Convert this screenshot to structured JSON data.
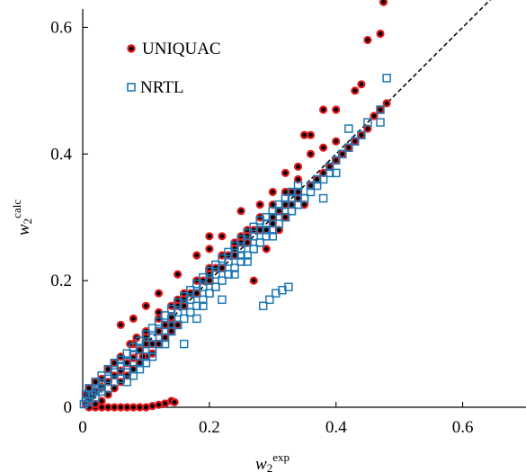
{
  "chart_data": {
    "type": "scatter",
    "title": "",
    "xlabel": "w",
    "xlabel_sub": "2",
    "xlabel_sup": "exp",
    "ylabel": "w",
    "ylabel_sub": "2",
    "ylabel_sup": "calc",
    "xlim": [
      0,
      0.7
    ],
    "ylim": [
      0,
      0.7
    ],
    "xticks": [
      0,
      0.2,
      0.4,
      0.6
    ],
    "xtick_labels": [
      "0",
      "0.2",
      "0.4",
      "0.6"
    ],
    "yticks": [
      0,
      0.2,
      0.4,
      0.6
    ],
    "ytick_labels": [
      "0",
      "0.2",
      "0.4",
      "0.6"
    ],
    "grid": false,
    "legend_position": "top-left",
    "reference_line": {
      "style": "dashed",
      "x": [
        0,
        0.7
      ],
      "y": [
        0,
        0.7
      ]
    },
    "series": [
      {
        "name": "UNIQUAC",
        "marker": "filled-circle",
        "fill_color": "#000000",
        "edge_color": "#e31a1c",
        "x": [
          0.005,
          0.01,
          0.015,
          0.02,
          0.03,
          0.04,
          0.05,
          0.06,
          0.07,
          0.08,
          0.09,
          0.1,
          0.12,
          0.14,
          0.16,
          0.18,
          0.2,
          0.22,
          0.24,
          0.26,
          0.28,
          0.3,
          0.32,
          0.34,
          0.005,
          0.01,
          0.02,
          0.03,
          0.04,
          0.05,
          0.06,
          0.08,
          0.1,
          0.12,
          0.14,
          0.16,
          0.18,
          0.2,
          0.22,
          0.24,
          0.26,
          0.28,
          0.3,
          0.32,
          0.34,
          0.02,
          0.03,
          0.04,
          0.05,
          0.06,
          0.07,
          0.08,
          0.09,
          0.1,
          0.11,
          0.12,
          0.13,
          0.14,
          0.145,
          0.01,
          0.02,
          0.03,
          0.04,
          0.05,
          0.06,
          0.07,
          0.08,
          0.09,
          0.1,
          0.11,
          0.12,
          0.13,
          0.14,
          0.15,
          0.1,
          0.11,
          0.12,
          0.13,
          0.14,
          0.15,
          0.16,
          0.17,
          0.18,
          0.19,
          0.2,
          0.21,
          0.22,
          0.23,
          0.24,
          0.25,
          0.26,
          0.27,
          0.28,
          0.29,
          0.3,
          0.31,
          0.32,
          0.33,
          0.34,
          0.35,
          0.36,
          0.37,
          0.38,
          0.39,
          0.4,
          0.41,
          0.42,
          0.43,
          0.44,
          0.45,
          0.46,
          0.47,
          0.48,
          0.075,
          0.085,
          0.095,
          0.12,
          0.15,
          0.2,
          0.25,
          0.27,
          0.29,
          0.31,
          0.33,
          0.35,
          0.36,
          0.38,
          0.4,
          0.43,
          0.44,
          0.45,
          0.47,
          0.475,
          0.48,
          0.06,
          0.08,
          0.1,
          0.12,
          0.15,
          0.18,
          0.2,
          0.22,
          0.25,
          0.28,
          0.3,
          0.32,
          0.34,
          0.36,
          0.38,
          0.4
        ],
        "y": [
          0.005,
          0.012,
          0.018,
          0.025,
          0.032,
          0.04,
          0.05,
          0.058,
          0.07,
          0.078,
          0.09,
          0.1,
          0.12,
          0.142,
          0.16,
          0.18,
          0.2,
          0.22,
          0.24,
          0.26,
          0.28,
          0.3,
          0.32,
          0.34,
          0.02,
          0.03,
          0.04,
          0.045,
          0.06,
          0.07,
          0.08,
          0.1,
          0.12,
          0.14,
          0.16,
          0.18,
          0.2,
          0.22,
          0.24,
          0.26,
          0.28,
          0.3,
          0.32,
          0.34,
          0.36,
          0.0,
          0.0,
          0.0,
          0.0,
          0.0,
          0.0,
          0.0,
          0.0,
          0.0,
          0.002,
          0.004,
          0.006,
          0.01,
          0.008,
          0.0,
          0.005,
          0.01,
          0.02,
          0.03,
          0.04,
          0.05,
          0.06,
          0.07,
          0.08,
          0.085,
          0.1,
          0.11,
          0.12,
          0.13,
          0.11,
          0.1,
          0.12,
          0.13,
          0.13,
          0.16,
          0.17,
          0.18,
          0.2,
          0.2,
          0.21,
          0.22,
          0.22,
          0.24,
          0.25,
          0.26,
          0.27,
          0.28,
          0.3,
          0.28,
          0.29,
          0.31,
          0.3,
          0.32,
          0.33,
          0.32,
          0.35,
          0.36,
          0.37,
          0.38,
          0.39,
          0.4,
          0.41,
          0.42,
          0.43,
          0.44,
          0.46,
          0.47,
          0.48,
          0.1,
          0.11,
          0.08,
          0.15,
          0.17,
          0.25,
          0.27,
          0.2,
          0.25,
          0.28,
          0.34,
          0.43,
          0.43,
          0.47,
          0.47,
          0.5,
          0.51,
          0.58,
          0.59,
          0.64,
          0.66,
          0.13,
          0.14,
          0.16,
          0.18,
          0.21,
          0.24,
          0.27,
          0.27,
          0.31,
          0.32,
          0.34,
          0.37,
          0.38,
          0.4,
          0.41,
          0.42
        ]
      },
      {
        "name": "NRTL",
        "marker": "open-square",
        "edge_color": "#1f78b4",
        "x": [
          0.002,
          0.005,
          0.01,
          0.015,
          0.02,
          0.025,
          0.03,
          0.04,
          0.05,
          0.06,
          0.07,
          0.08,
          0.09,
          0.1,
          0.11,
          0.12,
          0.13,
          0.14,
          0.15,
          0.16,
          0.17,
          0.18,
          0.19,
          0.2,
          0.21,
          0.22,
          0.23,
          0.24,
          0.25,
          0.26,
          0.27,
          0.28,
          0.29,
          0.3,
          0.31,
          0.32,
          0.33,
          0.34,
          0.005,
          0.01,
          0.02,
          0.03,
          0.04,
          0.05,
          0.06,
          0.07,
          0.08,
          0.09,
          0.1,
          0.11,
          0.12,
          0.13,
          0.14,
          0.15,
          0.16,
          0.17,
          0.18,
          0.19,
          0.2,
          0.21,
          0.22,
          0.23,
          0.24,
          0.25,
          0.26,
          0.27,
          0.28,
          0.29,
          0.3,
          0.31,
          0.32,
          0.33,
          0.34,
          0.01,
          0.02,
          0.03,
          0.04,
          0.05,
          0.06,
          0.07,
          0.08,
          0.09,
          0.1,
          0.11,
          0.12,
          0.13,
          0.14,
          0.15,
          0.16,
          0.17,
          0.18,
          0.19,
          0.2,
          0.21,
          0.22,
          0.23,
          0.24,
          0.25,
          0.26,
          0.27,
          0.28,
          0.29,
          0.3,
          0.31,
          0.32,
          0.33,
          0.34,
          0.35,
          0.36,
          0.37,
          0.38,
          0.39,
          0.4,
          0.41,
          0.42,
          0.43,
          0.44,
          0.45,
          0.47,
          0.48,
          0.285,
          0.295,
          0.305,
          0.315,
          0.325,
          0.08,
          0.1,
          0.12,
          0.14,
          0.16,
          0.18,
          0.2,
          0.22,
          0.24,
          0.26,
          0.28,
          0.3,
          0.32,
          0.34,
          0.36,
          0.38,
          0.4,
          0.42,
          0.47,
          0.07,
          0.09,
          0.11,
          0.13,
          0.15,
          0.17,
          0.19,
          0.21,
          0.23,
          0.25,
          0.27,
          0.29,
          0.31,
          0.33,
          0.35,
          0.37,
          0.39,
          0.41
        ],
        "y": [
          0.005,
          0.01,
          0.015,
          0.02,
          0.025,
          0.03,
          0.035,
          0.045,
          0.055,
          0.065,
          0.072,
          0.082,
          0.092,
          0.1,
          0.11,
          0.12,
          0.13,
          0.14,
          0.15,
          0.16,
          0.17,
          0.18,
          0.19,
          0.2,
          0.21,
          0.22,
          0.23,
          0.24,
          0.25,
          0.26,
          0.27,
          0.28,
          0.29,
          0.3,
          0.31,
          0.32,
          0.33,
          0.34,
          0.02,
          0.03,
          0.04,
          0.05,
          0.06,
          0.07,
          0.075,
          0.085,
          0.095,
          0.105,
          0.115,
          0.125,
          0.135,
          0.145,
          0.155,
          0.165,
          0.175,
          0.185,
          0.195,
          0.205,
          0.215,
          0.225,
          0.235,
          0.245,
          0.255,
          0.265,
          0.275,
          0.285,
          0.295,
          0.3,
          0.31,
          0.32,
          0.33,
          0.34,
          0.35,
          0.008,
          0.015,
          0.025,
          0.03,
          0.04,
          0.045,
          0.055,
          0.06,
          0.07,
          0.08,
          0.09,
          0.1,
          0.11,
          0.12,
          0.13,
          0.14,
          0.15,
          0.16,
          0.17,
          0.18,
          0.19,
          0.2,
          0.21,
          0.22,
          0.23,
          0.24,
          0.25,
          0.26,
          0.27,
          0.28,
          0.29,
          0.3,
          0.31,
          0.32,
          0.33,
          0.34,
          0.35,
          0.36,
          0.38,
          0.39,
          0.4,
          0.41,
          0.42,
          0.43,
          0.45,
          0.47,
          0.52,
          0.16,
          0.17,
          0.18,
          0.185,
          0.19,
          0.05,
          0.07,
          0.1,
          0.12,
          0.1,
          0.14,
          0.18,
          0.17,
          0.21,
          0.23,
          0.26,
          0.27,
          0.3,
          0.32,
          0.35,
          0.33,
          0.37,
          0.44,
          0.45,
          0.04,
          0.06,
          0.08,
          0.1,
          0.13,
          0.15,
          0.16,
          0.19,
          0.21,
          0.24,
          0.25,
          0.28,
          0.29,
          0.31,
          0.33,
          0.36,
          0.37,
          0.4
        ]
      }
    ]
  }
}
